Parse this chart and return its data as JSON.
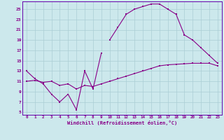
{
  "xlabel": "Windchill (Refroidissement éolien,°C)",
  "bg_color": "#cce8ec",
  "grid_color": "#aacdd4",
  "line_color": "#880088",
  "spine_color": "#6600aa",
  "xlim": [
    -0.5,
    23.5
  ],
  "ylim": [
    4.5,
    26.5
  ],
  "xticks": [
    0,
    1,
    2,
    3,
    4,
    5,
    6,
    7,
    8,
    9,
    10,
    11,
    12,
    13,
    14,
    15,
    16,
    17,
    18,
    19,
    20,
    21,
    22,
    23
  ],
  "yticks": [
    5,
    7,
    9,
    11,
    13,
    15,
    17,
    19,
    21,
    23,
    25
  ],
  "line1_x": [
    0,
    1,
    2,
    3,
    4,
    5,
    6,
    7,
    8,
    9
  ],
  "line1_y": [
    13,
    11.5,
    10.5,
    8.5,
    7,
    8.5,
    5.5,
    13,
    9.5,
    16.5
  ],
  "line2_x": [
    10,
    11,
    12,
    13,
    14,
    15,
    16,
    17,
    18,
    19,
    20,
    21,
    22,
    23
  ],
  "line2_y": [
    19,
    21.5,
    24,
    25,
    25.5,
    26,
    26,
    25,
    24,
    20,
    19,
    17.5,
    16,
    14.5
  ],
  "line3_x": [
    0,
    1,
    2,
    3,
    4,
    5,
    6,
    7,
    8,
    9,
    10,
    11,
    12,
    13,
    14,
    15,
    16,
    17,
    18,
    19,
    20,
    21,
    22,
    23
  ],
  "line3_y": [
    11,
    11.2,
    10.8,
    11,
    10.2,
    10.5,
    9.5,
    10.2,
    10,
    10.5,
    11,
    11.5,
    12,
    12.5,
    13,
    13.5,
    14,
    14.2,
    14.3,
    14.4,
    14.5,
    14.5,
    14.5,
    14
  ]
}
